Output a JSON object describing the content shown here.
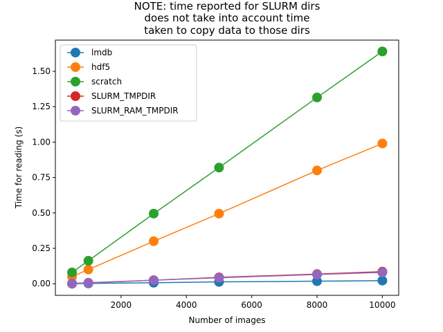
{
  "chart_data": {
    "type": "line",
    "title": [
      "NOTE: time reported for SLURM dirs",
      "does not take into account time",
      "taken to copy data to those dirs"
    ],
    "xlabel": "Number of images",
    "ylabel": "Time for reading (s)",
    "xlim": [
      -10,
      10500
    ],
    "ylim": [
      -0.082,
      1.72
    ],
    "x": [
      500,
      1000,
      3000,
      5000,
      8000,
      10000
    ],
    "x_ticks": [
      2000,
      4000,
      6000,
      8000,
      10000
    ],
    "x_tick_labels": [
      "2000",
      "4000",
      "6000",
      "8000",
      "10000"
    ],
    "y_ticks": [
      0.0,
      0.25,
      0.5,
      0.75,
      1.0,
      1.25,
      1.5
    ],
    "y_tick_labels": [
      "0.00",
      "0.25",
      "0.50",
      "0.75",
      "1.00",
      "1.25",
      "1.50"
    ],
    "grid": false,
    "legend_position": "top-left",
    "series": [
      {
        "name": "lmdb",
        "color": "#1f77b4",
        "values": [
          0.0,
          0.002,
          0.007,
          0.013,
          0.018,
          0.022
        ]
      },
      {
        "name": "hdf5",
        "color": "#ff7f0e",
        "values": [
          0.05,
          0.1,
          0.3,
          0.495,
          0.8,
          0.99
        ]
      },
      {
        "name": "scratch",
        "color": "#2ca02c",
        "values": [
          0.08,
          0.162,
          0.495,
          0.82,
          1.315,
          1.64
        ]
      },
      {
        "name": "SLURM_TMPDIR",
        "color": "#d62728",
        "values": [
          0.002,
          0.007,
          0.025,
          0.045,
          0.068,
          0.085
        ]
      },
      {
        "name": "SLURM_RAM_TMPDIR",
        "color": "#9467bd",
        "values": [
          0.002,
          0.006,
          0.025,
          0.042,
          0.065,
          0.08
        ]
      }
    ]
  }
}
